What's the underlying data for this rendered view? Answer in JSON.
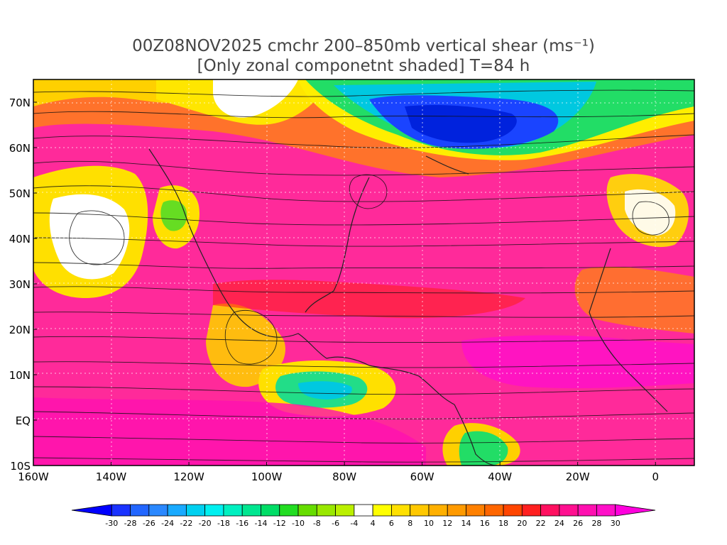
{
  "title": {
    "line1": "00Z08NOV2025 cmchr 200–850mb vertical shear (ms⁻¹)",
    "line2": "[Only zonal componetnt shaded] T=84 h"
  },
  "map": {
    "lat_labels": [
      "70N",
      "60N",
      "50N",
      "40N",
      "30N",
      "20N",
      "10N",
      "EQ",
      "10S"
    ],
    "lat_values": [
      70,
      60,
      50,
      40,
      30,
      20,
      10,
      0,
      -10
    ],
    "lon_labels": [
      "160W",
      "140W",
      "120W",
      "100W",
      "80W",
      "60W",
      "40W",
      "20W",
      "0"
    ],
    "lon_values": [
      -160,
      -140,
      -120,
      -100,
      -80,
      -60,
      -40,
      -20,
      0
    ],
    "lat_range": [
      -10,
      75
    ],
    "lon_range": [
      -160,
      10
    ],
    "field": "200–850mb vertical shear, zonal component shaded, streamlines overlaid"
  },
  "colorbar": {
    "labels": [
      "-30",
      "-28",
      "-26",
      "-24",
      "-22",
      "-20",
      "-18",
      "-16",
      "-14",
      "-12",
      "-10",
      "-8",
      "-6",
      "-4",
      "4",
      "6",
      "8",
      "10",
      "12",
      "14",
      "16",
      "18",
      "20",
      "22",
      "24",
      "26",
      "28",
      "30"
    ],
    "colors": [
      "#0000ff",
      "#1a33ff",
      "#2266ff",
      "#2a88ff",
      "#19aaff",
      "#00d0f0",
      "#00f0f0",
      "#00f0c0",
      "#00e690",
      "#00dd66",
      "#22dd22",
      "#66dd00",
      "#99e800",
      "#bbf000",
      "#ffffff",
      "#ffff00",
      "#ffe000",
      "#ffc800",
      "#ffb000",
      "#ff9a00",
      "#ff8000",
      "#ff6600",
      "#ff4500",
      "#ff2020",
      "#ff1060",
      "#ff1090",
      "#ff10b0",
      "#ff10c8",
      "#ff00dd"
    ]
  }
}
